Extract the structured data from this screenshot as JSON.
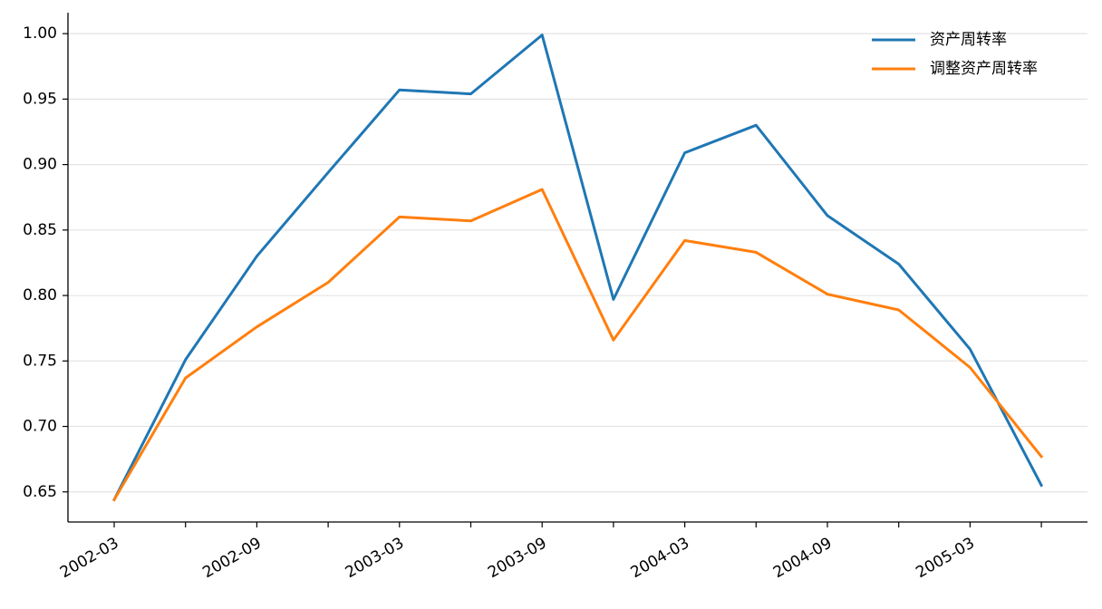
{
  "chart_data": {
    "type": "line",
    "title": "",
    "xlabel": "",
    "ylabel": "",
    "x": [
      "2002-03",
      "2002-06",
      "2002-09",
      "2002-12",
      "2003-03",
      "2003-06",
      "2003-09",
      "2003-12",
      "2004-03",
      "2004-06",
      "2004-09",
      "2004-12",
      "2005-03",
      "2005-06"
    ],
    "xtick_labels": [
      "2002-03",
      "2002-09",
      "2003-03",
      "2003-09",
      "2004-03",
      "2004-09",
      "2005-03"
    ],
    "ylim": [
      0.627,
      1.016
    ],
    "yticks": [
      0.65,
      0.7,
      0.75,
      0.8,
      0.85,
      0.9,
      0.95,
      1.0
    ],
    "ytick_labels": [
      "0.65",
      "0.70",
      "0.75",
      "0.80",
      "0.85",
      "0.90",
      "0.95",
      "1.00"
    ],
    "grid": "horizontal",
    "legend_position": "top-right",
    "series": [
      {
        "name": "资产周转率",
        "color": "#1f77b4",
        "values": [
          0.644,
          0.751,
          0.83,
          0.894,
          0.957,
          0.954,
          0.999,
          0.797,
          0.909,
          0.93,
          0.861,
          0.824,
          0.759,
          0.655
        ]
      },
      {
        "name": "调整资产周转率",
        "color": "#ff7f0e",
        "values": [
          0.644,
          0.737,
          0.776,
          0.81,
          0.86,
          0.857,
          0.881,
          0.766,
          0.842,
          0.833,
          0.801,
          0.789,
          0.745,
          0.677
        ]
      }
    ]
  }
}
